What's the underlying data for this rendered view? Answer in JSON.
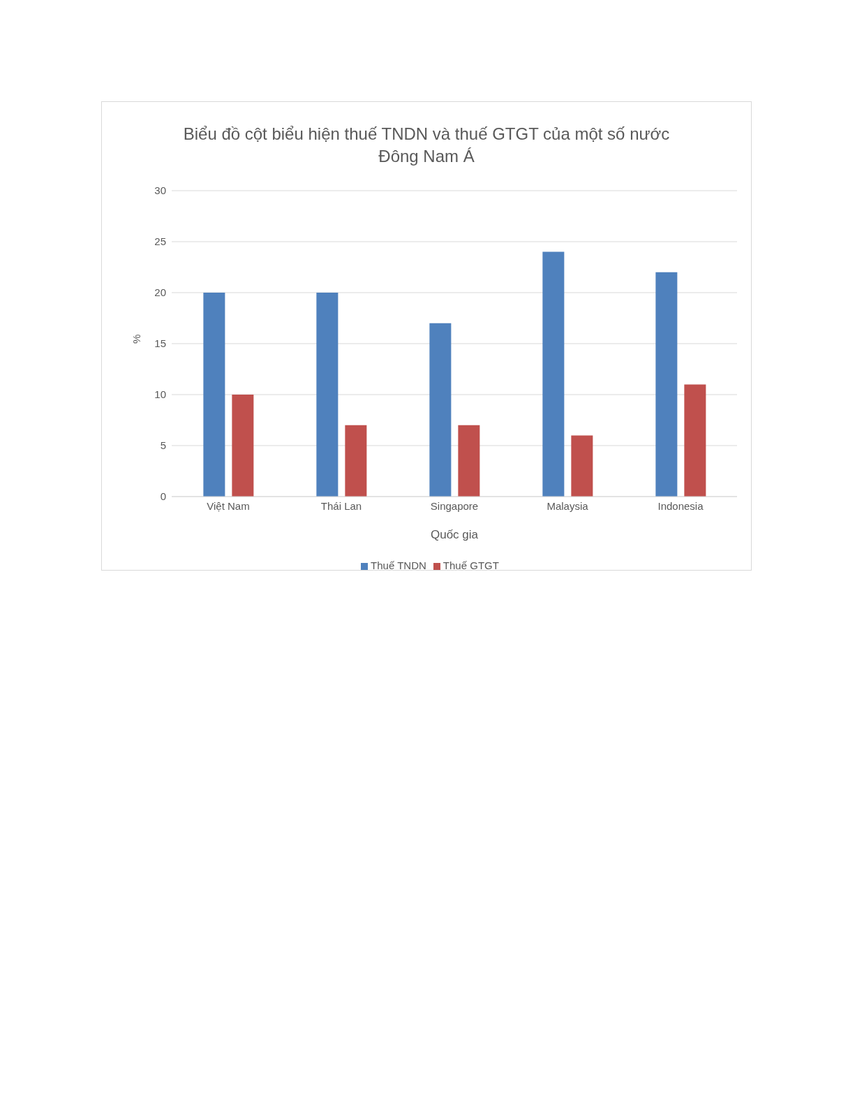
{
  "chart_data": {
    "type": "bar",
    "title": "Biểu đồ cột biểu hiện thuế TNDN và thuế GTGT của một số nước Đông Nam Á",
    "xlabel": "Quốc gia",
    "ylabel": "%",
    "categories": [
      "Việt Nam",
      "Thái Lan",
      "Singapore",
      "Malaysia",
      "Indonesia"
    ],
    "series": [
      {
        "name": "Thuế TNDN",
        "color": "#4f81bd",
        "values": [
          20,
          20,
          17,
          24,
          22
        ]
      },
      {
        "name": "Thuế GTGT",
        "color": "#c0504d",
        "values": [
          10,
          7,
          7,
          6,
          11
        ]
      }
    ],
    "ylim": [
      0,
      30
    ],
    "yticks": [
      0,
      5,
      10,
      15,
      20,
      25,
      30
    ],
    "grid": "y",
    "legend": "bottom"
  }
}
